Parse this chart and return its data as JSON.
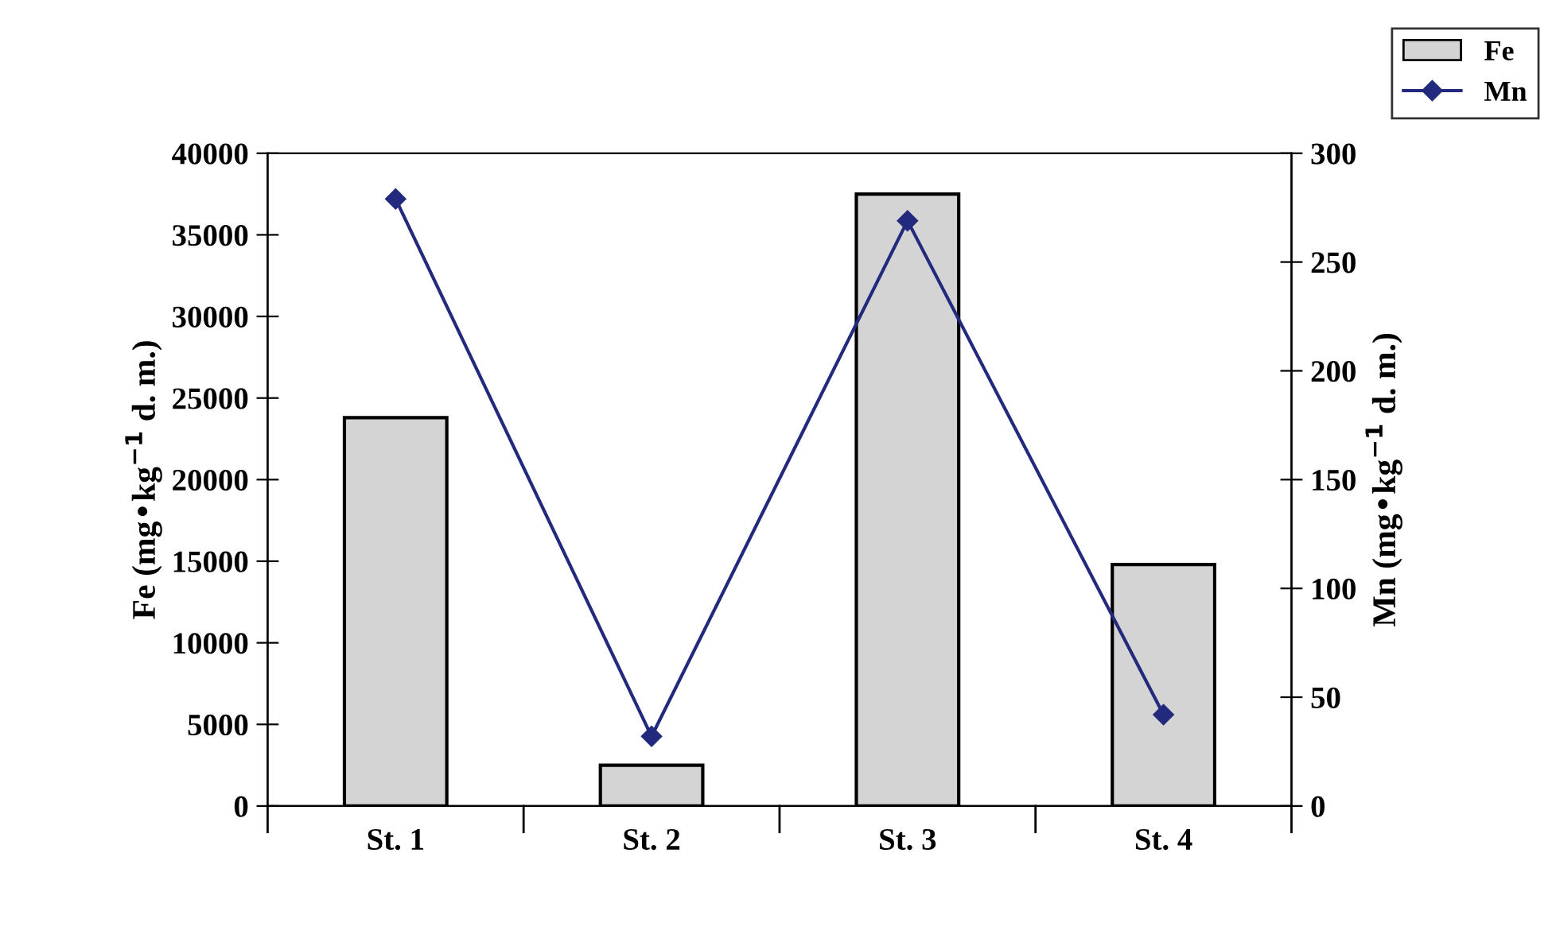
{
  "chart_data": {
    "type": "bar",
    "categories": [
      "St. 1",
      "St. 2",
      "St. 3",
      "St. 4"
    ],
    "ylabel": "Fe (mg•kg$^{−1}$ d. m.)",
    "y2label": "Mn (mg•kg$^{−1}$ d. m.)",
    "series": [
      {
        "name": "Fe",
        "color": "#d4d4d4",
        "values": [
          23800,
          2500,
          37500,
          14800
        ]
      },
      {
        "name": "Mn",
        "type": "line",
        "axis": "y2",
        "color": "#232a7e",
        "values": [
          279,
          32,
          269,
          42
        ]
      }
    ],
    "ylim": [
      0,
      40000
    ],
    "yticks": [
      0,
      5000,
      10000,
      15000,
      20000,
      25000,
      30000,
      35000,
      40000
    ],
    "y2lim": [
      0,
      300
    ],
    "y2ticks": [
      0,
      50,
      100,
      150,
      200,
      250,
      300
    ],
    "marker": "diamond",
    "line_style": "solid",
    "legend": "top right",
    "grid": false
  }
}
